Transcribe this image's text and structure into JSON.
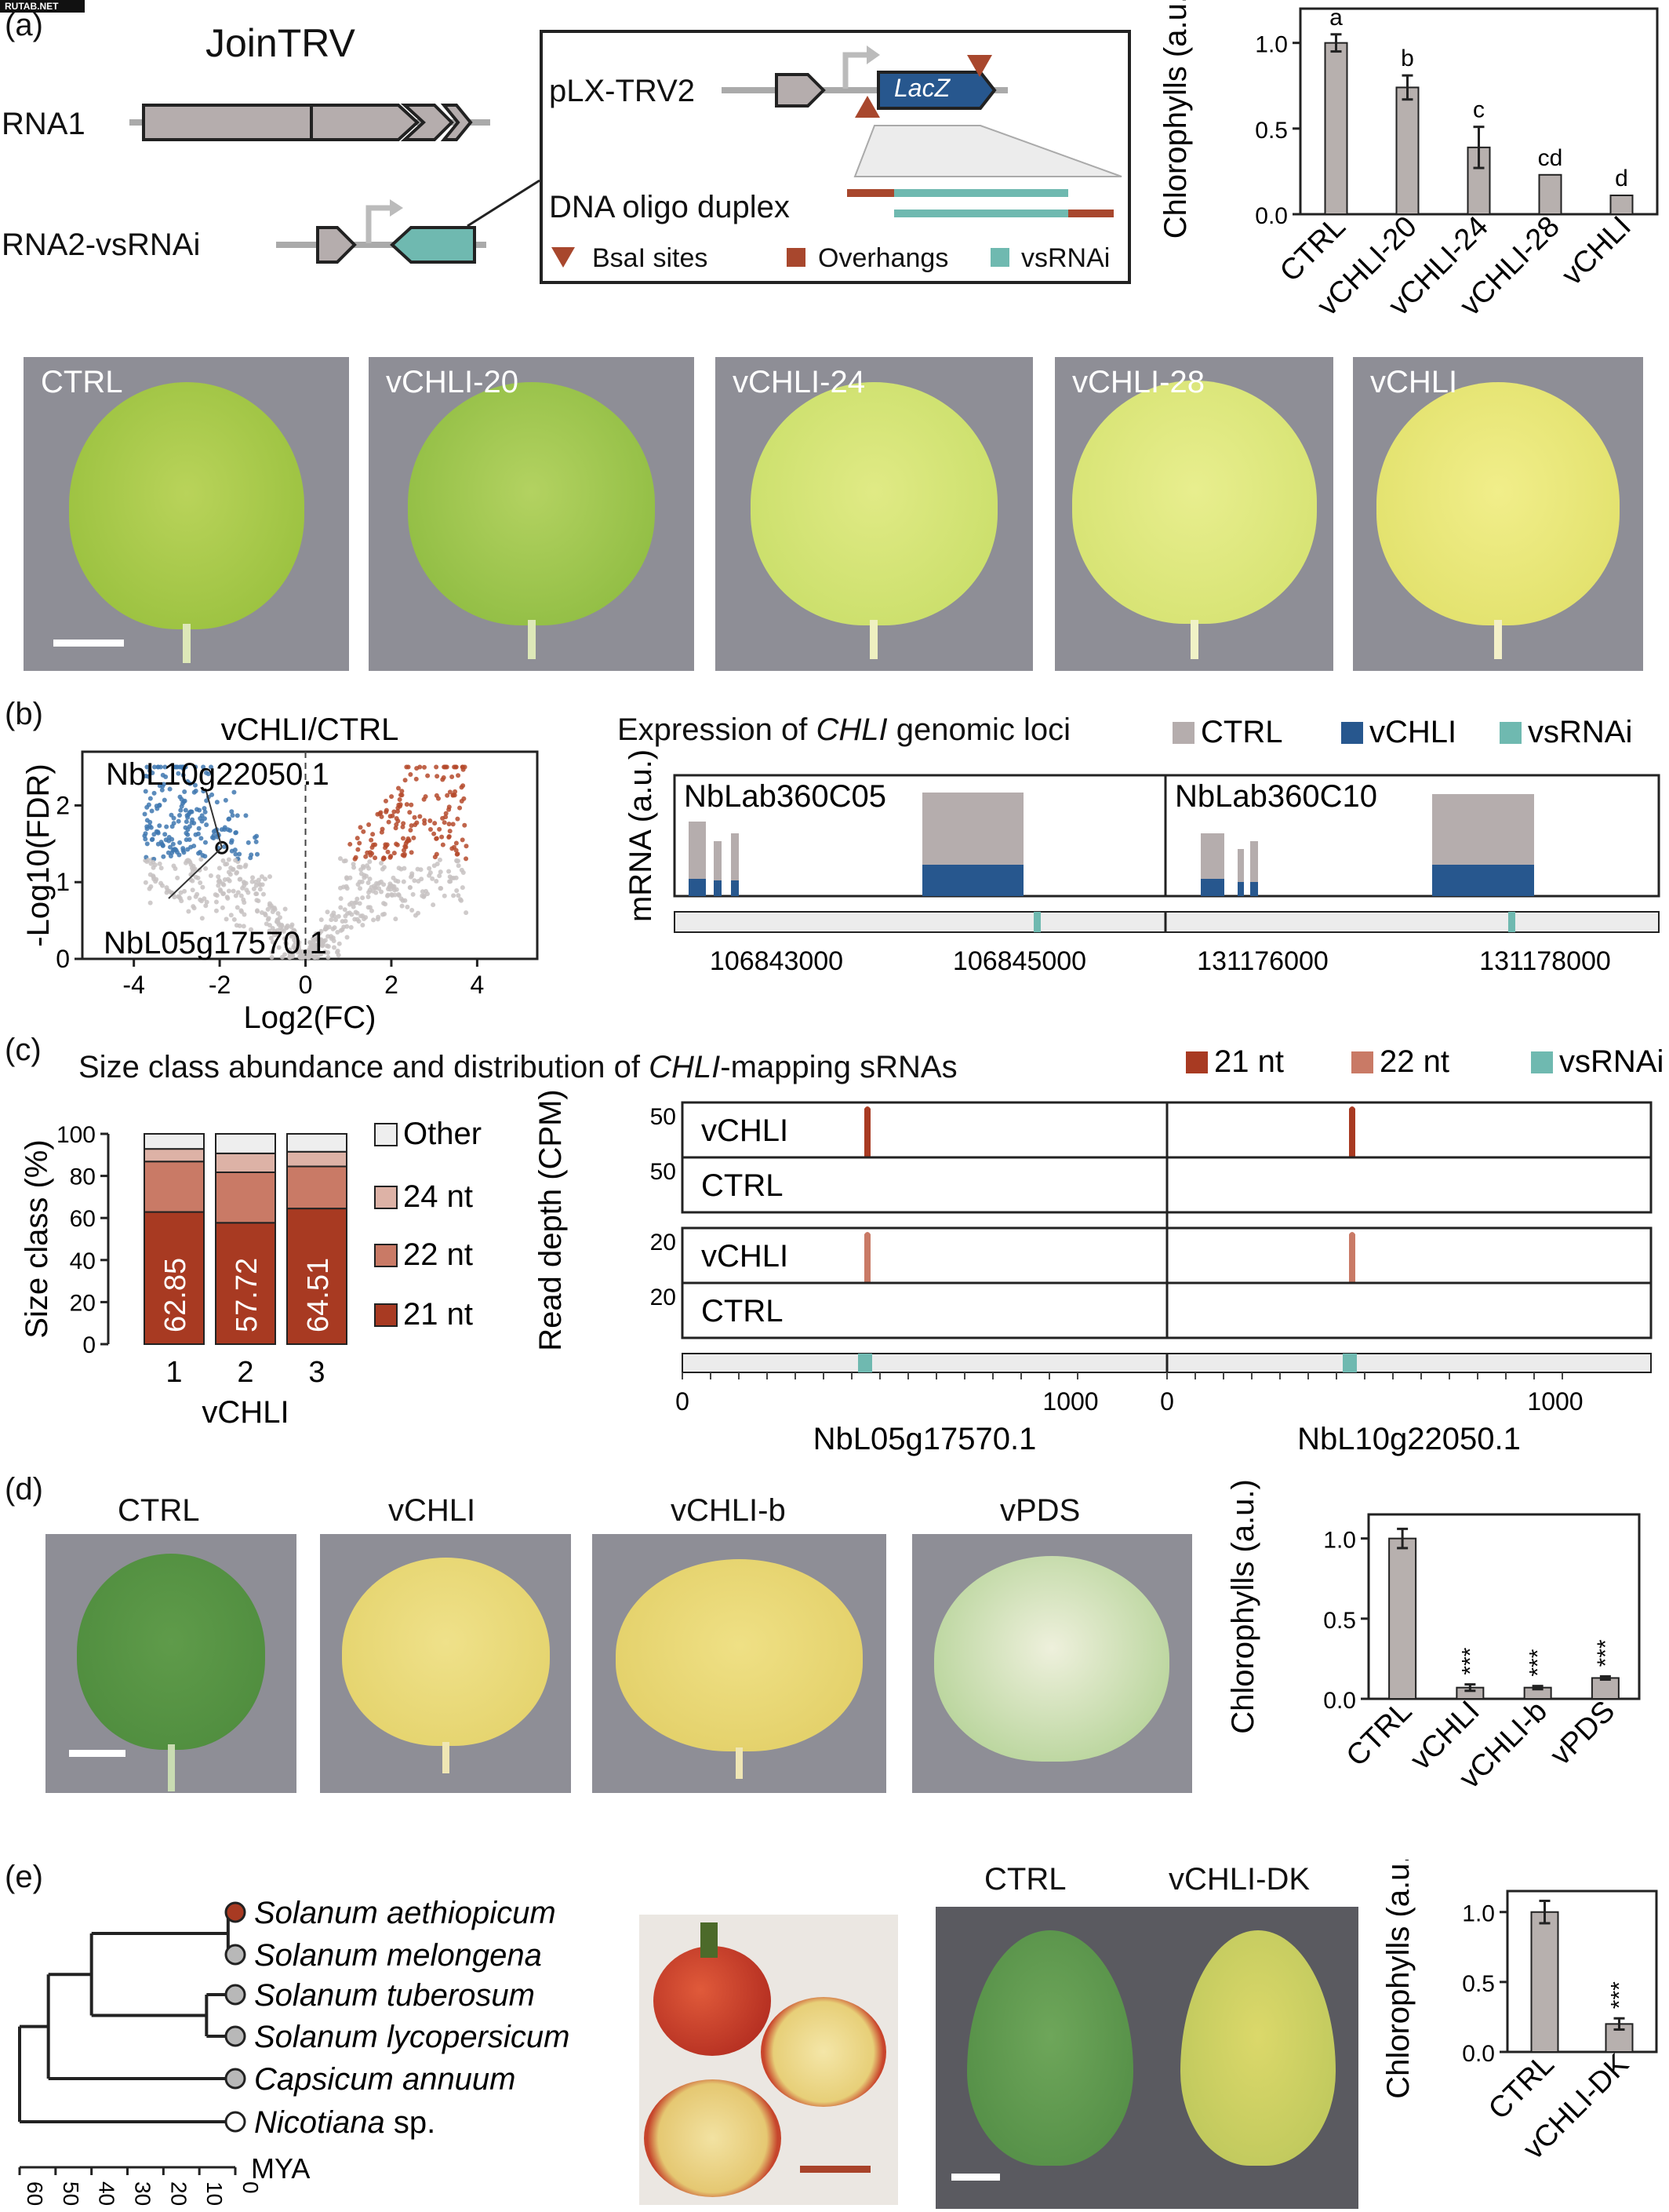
{
  "watermark": "RUTAB.NET",
  "panel_letters": {
    "a": "(a)",
    "b": "(b)",
    "c": "(c)",
    "d": "(d)",
    "e": "(e)"
  },
  "colors": {
    "ctrl": "#b5adad",
    "vchli": "#27578e",
    "vsrnai": "#6fb9b0",
    "nt21": "#a83a22",
    "nt22": "#c97a66",
    "nt24": "#ddb2a6",
    "other": "#eeeeee",
    "bar": "#b7b0ae",
    "up": "#b54a2c",
    "down": "#3f78b0",
    "bsa": "#a8472d"
  },
  "a": {
    "joinTRV": "JoinTRV",
    "rna1": "RNA1",
    "rna2": "RNA2-vsRNAi",
    "plx": "pLX-TRV2",
    "lacz": "LacZ",
    "oligo": "DNA oligo duplex",
    "legend": {
      "bsai": "BsaI sites",
      "overhangs": "Overhangs",
      "vsrnai": "vsRNAi"
    },
    "leaves": [
      "CTRL",
      "vCHLI-20",
      "vCHLI-24",
      "vCHLI-28",
      "vCHLI"
    ]
  },
  "chart_a": {
    "type": "bar",
    "categories": [
      "CTRL",
      "vCHLI-20",
      "vCHLI-24",
      "vCHLI-28",
      "vCHLI"
    ],
    "values": [
      1.0,
      0.74,
      0.39,
      0.23,
      0.11
    ],
    "errors": [
      0.05,
      0.07,
      0.12,
      0.0,
      0.0
    ],
    "letters": [
      "a",
      "b",
      "c",
      "cd",
      "d"
    ],
    "ylabel": "Chlorophylls (a.u.)",
    "yticks": [
      "0.0",
      "0.5",
      "1.0"
    ],
    "ylim": [
      0,
      1.2
    ]
  },
  "b": {
    "volcano_title": "vCHLI/CTRL",
    "ylabel": "-Log10(FDR)",
    "xlabel": "Log2(FC)",
    "xticks": [
      "-4",
      "-2",
      "0",
      "2",
      "4"
    ],
    "yticks": [
      "0",
      "1",
      "2"
    ],
    "gene1": "NbL10g22050.1",
    "gene2": "NbL05g17570.1",
    "expr_title_pre": "Expression of ",
    "expr_title_it": "CHLI",
    "expr_title_post": " genomic loci",
    "legend": {
      "ctrl": "CTRL",
      "vchli": "vCHLI",
      "vsrnai": "vsRNAi"
    },
    "mrna": "mRNA (a.u.)",
    "locus1": "NbLab360C05",
    "locus2": "NbLab360C10",
    "coords": [
      "106843000",
      "106845000",
      "131176000",
      "131178000"
    ]
  },
  "c": {
    "title_pre": "Size class abundance and distribution of ",
    "title_it": "CHLI",
    "title_post": "-mapping sRNAs",
    "legend": {
      "nt21": "21 nt",
      "nt22": "22 nt",
      "vsrnai": "vsRNAi"
    },
    "ylabel": "Size class (%)",
    "yticks": [
      "0",
      "20",
      "40",
      "60",
      "80",
      "100"
    ],
    "samples": [
      "1",
      "2",
      "3"
    ],
    "xlabel": "vCHLI",
    "stack_legend": [
      "Other",
      "24 nt",
      "22 nt",
      "21 nt"
    ],
    "readdepth": "Read depth (CPM)",
    "rows": [
      "vCHLI",
      "CTRL",
      "vCHLI",
      "CTRL"
    ],
    "scales": [
      "50",
      "50",
      "20",
      "20"
    ],
    "xaxis": [
      "0",
      "1000",
      "0",
      "1000"
    ],
    "gene1": "NbL05g17570.1",
    "gene2": "NbL10g22050.1"
  },
  "chart_c": {
    "type": "bar",
    "categories": [
      "1",
      "2",
      "3"
    ],
    "series": [
      {
        "name": "21 nt",
        "values": [
          62.85,
          57.72,
          64.51
        ]
      },
      {
        "name": "22 nt",
        "values": [
          24,
          24,
          20
        ]
      },
      {
        "name": "24 nt",
        "values": [
          6,
          9,
          7
        ]
      },
      {
        "name": "Other",
        "values": [
          7.15,
          9.28,
          8.49
        ]
      }
    ],
    "data_labels": [
      "62.85",
      "57.72",
      "64.51"
    ],
    "ylim": [
      0,
      100
    ]
  },
  "d": {
    "leaves": [
      "CTRL",
      "vCHLI",
      "vCHLI-b",
      "vPDS"
    ]
  },
  "chart_d": {
    "type": "bar",
    "categories": [
      "CTRL",
      "vCHLI",
      "vCHLI-b",
      "vPDS"
    ],
    "values": [
      1.0,
      0.07,
      0.07,
      0.13
    ],
    "errors": [
      0.06,
      0.02,
      0.01,
      0.01
    ],
    "stars": [
      "",
      "***",
      "***",
      "***"
    ],
    "ylabel": "Chlorophylls (a.u.)",
    "yticks": [
      "0.0",
      "0.5",
      "1.0"
    ],
    "ylim": [
      0,
      1.15
    ]
  },
  "e": {
    "species": [
      {
        "genus": "Solanum",
        "epithet": "aethiopicum",
        "suffix": ""
      },
      {
        "genus": "Solanum",
        "epithet": "melongena",
        "suffix": ""
      },
      {
        "genus": "Solanum",
        "epithet": "tuberosum",
        "suffix": ""
      },
      {
        "genus": "Solanum",
        "epithet": "lycopersicum",
        "suffix": ""
      },
      {
        "genus": "Capsicum",
        "epithet": "annuum",
        "suffix": ""
      },
      {
        "genus": "Nicotiana",
        "epithet": "",
        "suffix": " sp."
      }
    ],
    "mya_ticks": [
      "60",
      "50",
      "40",
      "30",
      "20",
      "10",
      "0"
    ],
    "mya": "MYA",
    "leaves": [
      "CTRL",
      "vCHLI-DK"
    ]
  },
  "chart_e": {
    "type": "bar",
    "categories": [
      "CTRL",
      "vCHLI-DK"
    ],
    "values": [
      1.0,
      0.2
    ],
    "errors": [
      0.08,
      0.04
    ],
    "stars": [
      "",
      "***"
    ],
    "ylabel": "Chlorophylls (a.u.)",
    "yticks": [
      "0.0",
      "0.5",
      "1.0"
    ],
    "ylim": [
      0,
      1.15
    ]
  }
}
